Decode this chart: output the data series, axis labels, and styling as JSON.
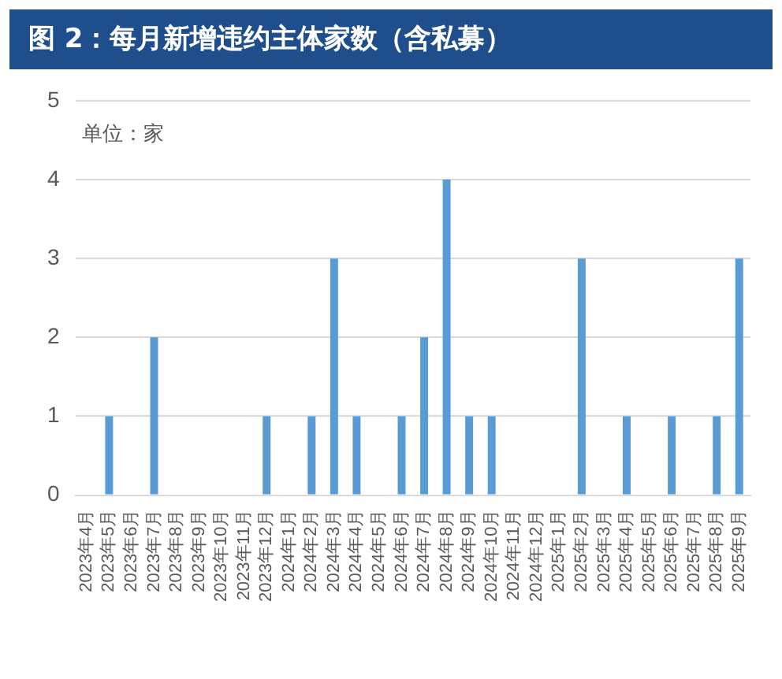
{
  "chart_data": {
    "type": "bar",
    "title": "图 2：每月新增违约主体家数（含私募）",
    "annotations": [
      "单位：家"
    ],
    "categories": [
      "2023年4月",
      "2023年5月",
      "2023年6月",
      "2023年7月",
      "2023年8月",
      "2023年9月",
      "2023年10月",
      "2023年11月",
      "2023年12月",
      "2024年1月",
      "2024年2月",
      "2024年3月",
      "2024年4月",
      "2024年5月",
      "2024年6月",
      "2024年7月",
      "2024年8月",
      "2024年9月",
      "2024年10月",
      "2024年11月",
      "2024年12月",
      "2025年1月",
      "2025年2月",
      "2025年3月",
      "2025年4月",
      "2025年5月",
      "2025年6月",
      "2025年7月",
      "2025年8月",
      "2025年9月"
    ],
    "values": [
      0,
      1,
      0,
      2,
      0,
      0,
      0,
      0,
      1,
      0,
      1,
      3,
      1,
      0,
      1,
      2,
      4,
      1,
      1,
      0,
      0,
      0,
      3,
      0,
      1,
      0,
      1,
      0,
      1,
      3
    ],
    "color": "#5b9bd5",
    "ylim": [
      0,
      5
    ],
    "yticks": [
      0,
      1,
      2,
      3,
      4,
      5
    ],
    "grid": "y",
    "legend": false
  }
}
